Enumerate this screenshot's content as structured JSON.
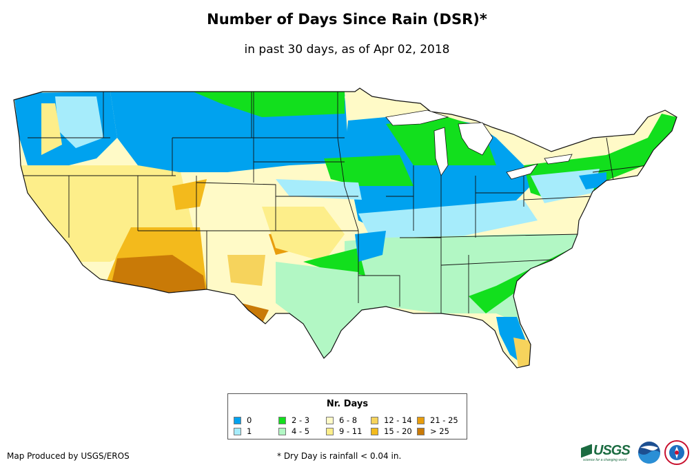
{
  "title": "Number of Days Since Rain (DSR)*",
  "subtitle": "in past 30 days, as of Apr 02, 2018",
  "legend": {
    "title": "Nr. Days",
    "items": [
      {
        "label": "0",
        "color": "#00a2ef"
      },
      {
        "label": "1",
        "color": "#a6ecfb"
      },
      {
        "label": "2 - 3",
        "color": "#12df1d"
      },
      {
        "label": "4 - 5",
        "color": "#b2f7c4"
      },
      {
        "label": "6 - 8",
        "color": "#fffac7"
      },
      {
        "label": "9 - 11",
        "color": "#fdee8a"
      },
      {
        "label": "12 - 14",
        "color": "#f6d35c"
      },
      {
        "label": "15 - 20",
        "color": "#f3ba1c"
      },
      {
        "label": "21 - 25",
        "color": "#e89d0d"
      },
      {
        "label": "> 25",
        "color": "#c97a07"
      }
    ]
  },
  "credit": "Map Produced by USGS/EROS",
  "footnote": "* Dry Day is rainfall < 0.04 in.",
  "logos": {
    "usgs": "USGS",
    "usgs_tagline": "science for a changing world",
    "noaa": "noaa-logo-icon",
    "nws": "nws-logo-icon"
  }
}
